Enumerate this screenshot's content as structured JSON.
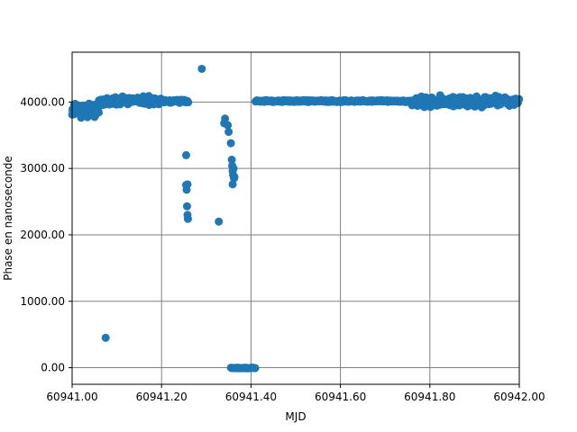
{
  "chart_data": {
    "type": "scatter",
    "title": "",
    "xlabel": "MJD",
    "ylabel": "Phase en nanoseconde",
    "xlim": [
      60941.0,
      60942.0
    ],
    "ylim": [
      -250,
      4750
    ],
    "xticks": [
      60941.0,
      60941.2,
      60941.4,
      60941.6,
      60941.8,
      60942.0
    ],
    "xtick_labels": [
      "60941.00",
      "60941.20",
      "60941.40",
      "60941.60",
      "60941.80",
      "60942.00"
    ],
    "yticks": [
      0,
      1000,
      2000,
      3000,
      4000
    ],
    "ytick_labels": [
      "0.00",
      "1000.00",
      "2000.00",
      "3000.00",
      "4000.00"
    ],
    "grid": true,
    "legend": "none",
    "marker_color": "#1f77b4",
    "grid_color": "#808080",
    "outliers": [
      {
        "x": 60941.075,
        "y": 450
      },
      {
        "x": 60941.29,
        "y": 4500
      },
      {
        "x": 60941.328,
        "y": 2200
      },
      {
        "x": 60941.255,
        "y": 3200
      },
      {
        "x": 60941.255,
        "y": 2750
      },
      {
        "x": 60941.256,
        "y": 2680
      },
      {
        "x": 60941.258,
        "y": 2760
      },
      {
        "x": 60941.257,
        "y": 2430
      },
      {
        "x": 60941.258,
        "y": 2300
      },
      {
        "x": 60941.259,
        "y": 2240
      },
      {
        "x": 60941.34,
        "y": 3680
      },
      {
        "x": 60941.342,
        "y": 3750
      },
      {
        "x": 60941.348,
        "y": 3650
      },
      {
        "x": 60941.35,
        "y": 3550
      },
      {
        "x": 60941.355,
        "y": 3380
      },
      {
        "x": 60941.357,
        "y": 3130
      },
      {
        "x": 60941.358,
        "y": 3040
      },
      {
        "x": 60941.359,
        "y": 2960
      },
      {
        "x": 60941.36,
        "y": 2900
      },
      {
        "x": 60941.361,
        "y": 3000
      },
      {
        "x": 60941.362,
        "y": 2850
      },
      {
        "x": 60941.359,
        "y": 2760
      },
      {
        "x": 60941.363,
        "y": 2870
      }
    ],
    "segments": [
      {
        "x_start": 60941.0,
        "x_end": 60941.06,
        "n": 90,
        "center": 3880,
        "spread": 130,
        "seed": 11
      },
      {
        "x_start": 60941.06,
        "x_end": 60941.2,
        "n": 140,
        "center": 4020,
        "spread": 90,
        "seed": 17
      },
      {
        "x_start": 60941.2,
        "x_end": 60941.26,
        "n": 40,
        "center": 4010,
        "spread": 40,
        "seed": 23
      },
      {
        "x_start": 60941.355,
        "x_end": 60941.41,
        "n": 40,
        "center": -5,
        "spread": 8,
        "seed": 29
      },
      {
        "x_start": 60941.41,
        "x_end": 60941.76,
        "n": 260,
        "center": 4015,
        "spread": 20,
        "seed": 31
      },
      {
        "x_start": 60941.76,
        "x_end": 60942.0,
        "n": 200,
        "center": 4000,
        "spread": 110,
        "seed": 37
      }
    ]
  }
}
